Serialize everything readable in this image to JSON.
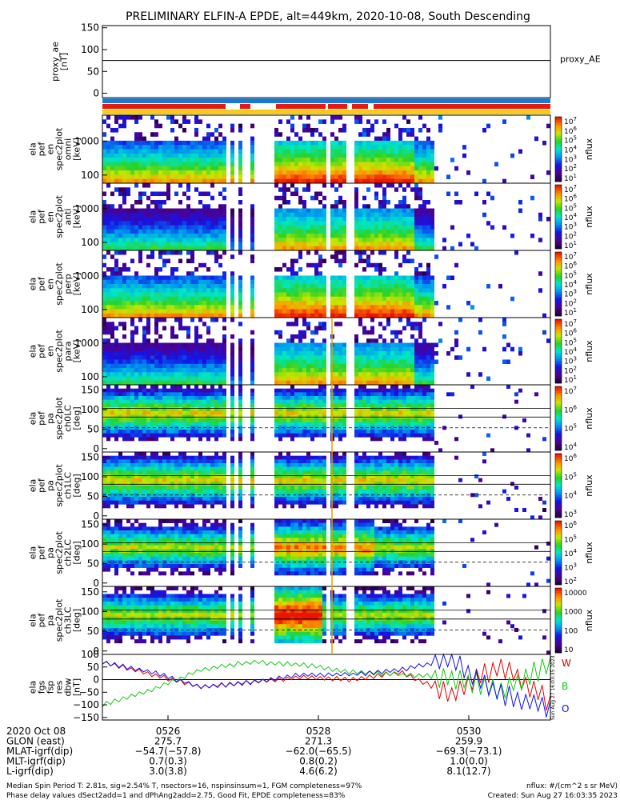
{
  "title": "PRELIMINARY ELFIN-A EPDE, alt=449km, 2020-10-08, South Descending",
  "colors": {
    "sci_bar": "#1a7ad4",
    "red_bar": "#e8170f",
    "yellow_bar": "#f7cb17",
    "green": "#12c812",
    "blue": "#1010ee",
    "red": "#e00000"
  },
  "panels": [
    {
      "label_lines": [
        "proxy_ae",
        "[nT]"
      ],
      "right_label": "proxy_AE",
      "type": "line",
      "y_ticks": [
        "150",
        "100",
        "50",
        "0"
      ],
      "y_values": [
        150,
        100,
        50,
        0
      ],
      "ylim": [
        -10,
        155
      ],
      "value": 75
    },
    {
      "label_lines": [
        "ela",
        "pef",
        "en",
        "spec2plot",
        "omni",
        "[keV]"
      ],
      "type": "energy",
      "y_ticks": [
        "1000",
        "100"
      ],
      "cbar_label": "nflux",
      "cbar_ticks": [
        "10^7",
        "10^6",
        "10^5",
        "10^4",
        "10^3",
        "10^2",
        "10^1"
      ]
    },
    {
      "label_lines": [
        "ela",
        "pef",
        "en",
        "spec2plot",
        "anti",
        "[keV]"
      ],
      "type": "energy",
      "y_ticks": [
        "1000",
        "100"
      ],
      "cbar_label": "nflux",
      "cbar_ticks": [
        "10^7",
        "10^6",
        "10^5",
        "10^4",
        "10^3",
        "10^2",
        "10^1"
      ]
    },
    {
      "label_lines": [
        "ela",
        "pef",
        "en",
        "spec2plot",
        "perp",
        "[keV]"
      ],
      "type": "energy",
      "y_ticks": [
        "1000",
        "100"
      ],
      "cbar_label": "nflux",
      "cbar_ticks": [
        "10^7",
        "10^6",
        "10^5",
        "10^4",
        "10^3",
        "10^2",
        "10^1"
      ]
    },
    {
      "label_lines": [
        "ela",
        "pef",
        "en",
        "spec2plot",
        "para",
        "[keV]"
      ],
      "type": "energy",
      "y_ticks": [
        "1000",
        "100"
      ],
      "cbar_label": "nflux",
      "cbar_ticks": [
        "10^7",
        "10^6",
        "10^5",
        "10^4",
        "10^3",
        "10^2",
        "10^1"
      ]
    },
    {
      "label_lines": [
        "ela",
        "pef",
        "pa",
        "spec2plot",
        "ch0LC",
        "[deg]"
      ],
      "type": "pitch",
      "y_ticks": [
        "150",
        "100",
        "50",
        "0"
      ],
      "cbar_label": "nflux",
      "cbar_ticks": [
        "10^7",
        "10^6",
        "10^5",
        "10^4"
      ]
    },
    {
      "label_lines": [
        "ela",
        "pef",
        "pa",
        "spec2plot",
        "ch1LC",
        "[deg]"
      ],
      "type": "pitch",
      "y_ticks": [
        "150",
        "100",
        "50",
        "0"
      ],
      "cbar_label": "nflux",
      "cbar_ticks": [
        "10^6",
        "10^5",
        "10^4",
        "10^3"
      ]
    },
    {
      "label_lines": [
        "ela",
        "pef",
        "pa",
        "spec2plot",
        "ch2LC",
        "[deg]"
      ],
      "type": "pitch",
      "y_ticks": [
        "150",
        "100",
        "50",
        "0"
      ],
      "cbar_label": "nflux",
      "cbar_ticks": [
        "10^6",
        "10^5",
        "10^4",
        "10^3",
        "10^2"
      ]
    },
    {
      "label_lines": [
        "ela",
        "pef",
        "pa",
        "spec2plot",
        "ch3LC",
        "[deg]"
      ],
      "type": "pitch",
      "y_ticks": [
        "150",
        "100",
        "50",
        "0"
      ],
      "cbar_label": "nflux",
      "cbar_ticks": [
        "10000",
        "1000",
        "100",
        "10"
      ]
    },
    {
      "label_lines": [
        "ela",
        "fgs",
        "fsp",
        "res",
        "dbw",
        "[nT]"
      ],
      "type": "fgm",
      "y_ticks": [
        "100",
        "50",
        "0",
        "−50",
        "−100",
        "−150"
      ],
      "y_values": [
        100,
        50,
        0,
        -50,
        -100,
        -150
      ],
      "ylim": [
        -160,
        100
      ],
      "legend": [
        "W",
        "B",
        "O"
      ]
    }
  ],
  "x_axis": {
    "ticks": [
      "0526",
      "0528",
      "0530"
    ]
  },
  "footer_table": [
    {
      "label": "2020 Oct 08",
      "values": [
        "",
        "",
        ""
      ]
    },
    {
      "label": "GLON (east)",
      "values": [
        "275.7",
        "271.3",
        "259.9"
      ]
    },
    {
      "label": "MLAT-igrf(dip)",
      "values": [
        "−54.7(−57.8)",
        "−62.0(−65.5)",
        "−69.3(−73.1)"
      ]
    },
    {
      "label": "MLT-igrf(dip)",
      "values": [
        "0.7(0.3)",
        "0.8(0.2)",
        "1.0(0.0)"
      ]
    },
    {
      "label": "L-igrf(dip)",
      "values": [
        "3.0(3.8)",
        "4.6(6.2)",
        "8.1(12.7)"
      ]
    }
  ],
  "footer_notes": {
    "line1_left": "Median Spin Period T: 2.81s, sig=2.54% T, nsectors=16, nspinsinsum=1, FGM completeness=97%",
    "line2_left": "Phase delay values dSect2add=1 and dPhAng2add=2.75, Good Fit, EPDE completeness=83%",
    "line1_right": "nflux: #/(cm^2 s sr MeV)",
    "line2_right": "Created: Sun Aug 27 16:03:35 2023",
    "vertical_stamp": "Sun Aug 27 16:03:35 2023"
  },
  "chart_data": {
    "type": "heatmap",
    "title": "PRELIMINARY ELFIN-A EPDE, alt=449km, 2020-10-08, South Descending",
    "x_ticks": [
      "0526",
      "0528",
      "0530"
    ],
    "series": [
      {
        "name": "proxy_AE",
        "values": [
          75,
          75,
          75,
          75,
          75
        ]
      },
      {
        "name": "W",
        "values": [
          70,
          20,
          -30,
          -10,
          10,
          0,
          30,
          -60,
          60,
          -90
        ]
      },
      {
        "name": "B",
        "values": [
          -100,
          -40,
          40,
          70,
          60,
          30,
          20,
          10,
          -40,
          60
        ]
      },
      {
        "name": "O",
        "values": [
          70,
          30,
          -30,
          -10,
          20,
          20,
          40,
          80,
          -60,
          -110
        ]
      }
    ]
  }
}
